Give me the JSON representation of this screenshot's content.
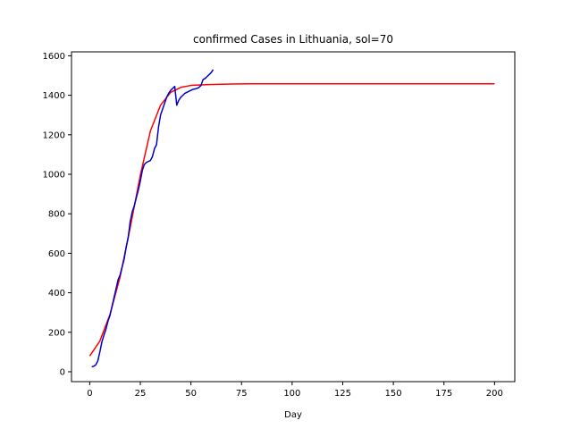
{
  "chart_data": {
    "type": "line",
    "title": "confirmed Cases in Lithuania, sol=70",
    "xlabel": "Day",
    "ylabel": "",
    "xlim": [
      -9,
      210
    ],
    "ylim": [
      -50,
      1620
    ],
    "xticks": [
      0,
      25,
      50,
      75,
      100,
      125,
      150,
      175,
      200
    ],
    "yticks": [
      0,
      200,
      400,
      600,
      800,
      1000,
      1200,
      1400,
      1600
    ],
    "grid": false,
    "legend": "none",
    "series": [
      {
        "color": "#ff0000",
        "x": [
          0,
          5,
          10,
          15,
          20,
          25,
          30,
          35,
          40,
          45,
          50,
          60,
          70,
          80,
          100,
          150,
          200
        ],
        "y": [
          80,
          155,
          290,
          480,
          730,
          995,
          1220,
          1350,
          1415,
          1440,
          1450,
          1455,
          1457,
          1458,
          1458,
          1458,
          1458
        ]
      },
      {
        "color": "#0000cc",
        "x": [
          1,
          2,
          3,
          4,
          5,
          6,
          7,
          8,
          9,
          10,
          11,
          12,
          13,
          14,
          15,
          16,
          17,
          18,
          19,
          20,
          21,
          22,
          23,
          24,
          25,
          26,
          27,
          28,
          29,
          30,
          31,
          32,
          33,
          34,
          35,
          36,
          37,
          38,
          39,
          40,
          41,
          42,
          43,
          44,
          45,
          46,
          47,
          48,
          49,
          50,
          51,
          52,
          53,
          54,
          55,
          56,
          57,
          58,
          59,
          60,
          61
        ],
        "y": [
          25,
          28,
          35,
          55,
          100,
          150,
          185,
          215,
          255,
          285,
          330,
          375,
          420,
          465,
          490,
          530,
          570,
          630,
          680,
          760,
          810,
          840,
          880,
          920,
          965,
          1020,
          1050,
          1060,
          1065,
          1070,
          1090,
          1130,
          1150,
          1240,
          1300,
          1330,
          1360,
          1390,
          1410,
          1425,
          1435,
          1445,
          1350,
          1375,
          1390,
          1400,
          1410,
          1415,
          1420,
          1425,
          1430,
          1432,
          1435,
          1440,
          1450,
          1480,
          1485,
          1495,
          1505,
          1515,
          1530
        ]
      }
    ]
  }
}
